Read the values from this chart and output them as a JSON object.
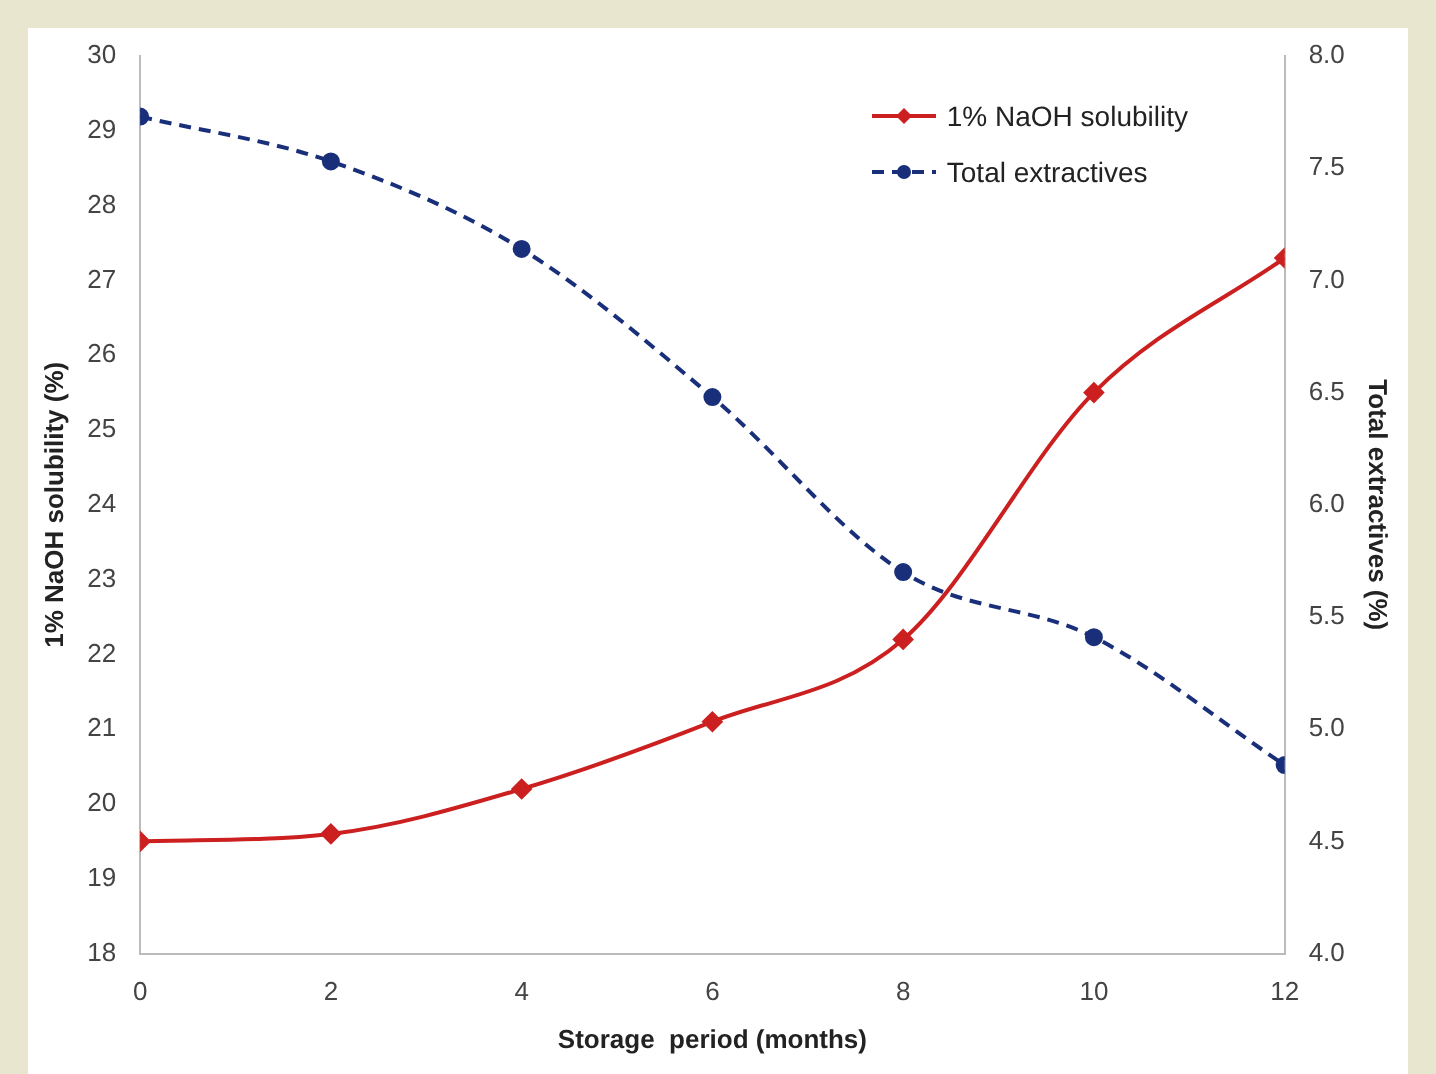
{
  "chart_data": {
    "type": "line",
    "xlabel": "Storage  period (months)",
    "ylabel": "1% NaOH solubility (%)",
    "y2label": "Total extractives (%)",
    "x": [
      0,
      2,
      4,
      6,
      8,
      10,
      12
    ],
    "series": [
      {
        "name": "1% NaOH solubility",
        "color": "#cc1f1f",
        "values": [
          19.5,
          19.6,
          20.2,
          21.1,
          22.2,
          25.5,
          27.3
        ],
        "marker": "diamond",
        "line_style": "solid"
      },
      {
        "name": "Total extractives",
        "color": "#1a2f7a",
        "values": [
          7.73,
          7.53,
          7.14,
          6.48,
          5.7,
          5.41,
          4.84
        ],
        "axis": "y2",
        "marker": "circle",
        "line_style": "dashed"
      }
    ],
    "xlim": [
      0,
      12
    ],
    "xticks": [
      0,
      2,
      4,
      6,
      8,
      10,
      12
    ],
    "ylim": [
      18,
      30
    ],
    "yticks": [
      18,
      19,
      20,
      21,
      22,
      23,
      24,
      25,
      26,
      27,
      28,
      29,
      30
    ],
    "y2lim": [
      4,
      8
    ],
    "y2ticks": [
      {
        "value": 4,
        "label": "4.0"
      },
      {
        "value": 4.5,
        "label": "4.5"
      },
      {
        "value": 5,
        "label": "5.0"
      },
      {
        "value": 5.5,
        "label": "5.5"
      },
      {
        "value": 6,
        "label": "6.0"
      },
      {
        "value": 6.5,
        "label": "6.5"
      },
      {
        "value": 7,
        "label": "7.0"
      },
      {
        "value": 7.5,
        "label": "7.5"
      },
      {
        "value": 8,
        "label": "8.0"
      }
    ],
    "grid": false,
    "legend": "top right"
  }
}
